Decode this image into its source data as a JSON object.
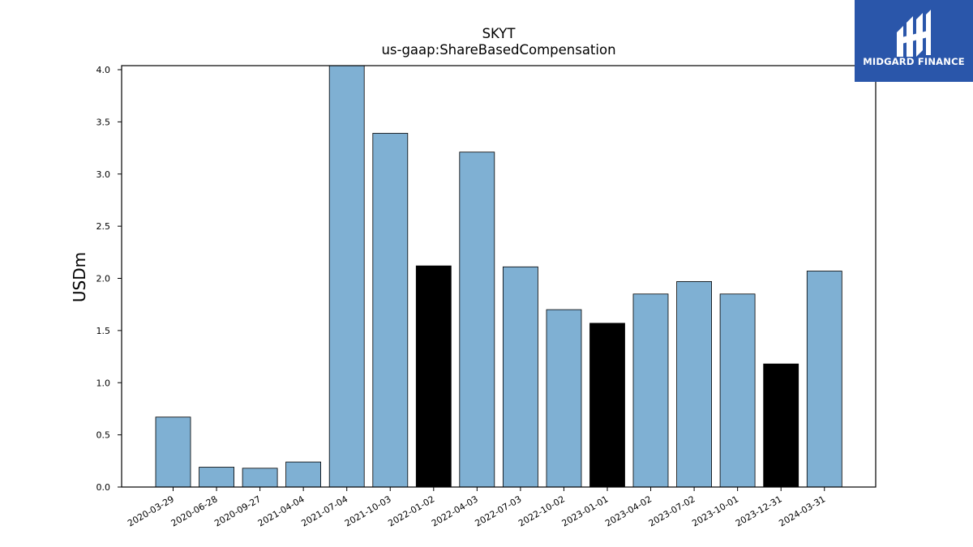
{
  "brand": {
    "name": "MIDGARD FINANCE",
    "bg_color": "#2a56aa"
  },
  "chart_data": {
    "type": "bar",
    "title": "SKYT",
    "subtitle": "us-gaap:ShareBasedCompensation",
    "xlabel": "",
    "ylabel": "USDm",
    "ylim": [
      0,
      4.0
    ],
    "yticks": [
      "0.0",
      "0.5",
      "1.0",
      "1.5",
      "2.0",
      "2.5",
      "3.0",
      "3.5",
      "4.0"
    ],
    "categories": [
      "2020-03-29",
      "2020-06-28",
      "2020-09-27",
      "2021-04-04",
      "2021-07-04",
      "2021-10-03",
      "2022-01-02",
      "2022-04-03",
      "2022-07-03",
      "2022-10-02",
      "2023-01-01",
      "2023-04-02",
      "2023-07-02",
      "2023-10-01",
      "2023-12-31",
      "2024-03-31"
    ],
    "values": [
      0.67,
      0.19,
      0.18,
      0.24,
      4.05,
      3.39,
      2.12,
      3.21,
      2.11,
      1.7,
      1.57,
      1.85,
      1.97,
      1.85,
      1.18,
      2.07
    ],
    "highlighted": [
      false,
      false,
      false,
      false,
      false,
      false,
      true,
      false,
      false,
      false,
      true,
      false,
      false,
      false,
      true,
      false
    ],
    "colors": {
      "bar": "#7fb0d3",
      "highlight": "#000000",
      "edge": "#000000"
    },
    "grid": false,
    "legend": "none"
  }
}
